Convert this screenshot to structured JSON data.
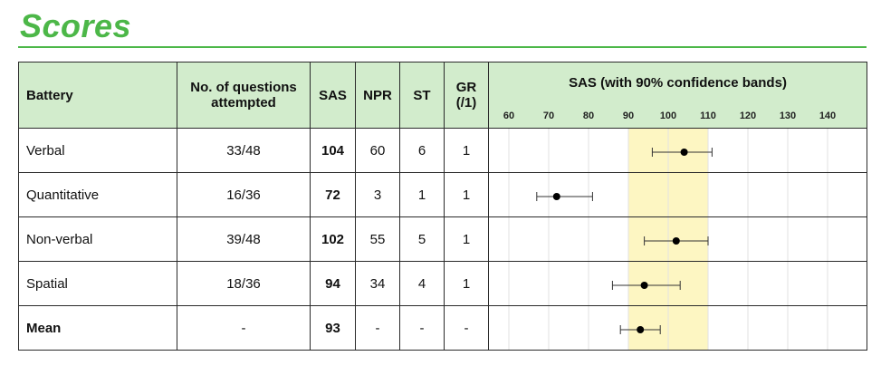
{
  "title": "Scores",
  "table": {
    "headers": {
      "battery": "Battery",
      "questions": "No. of questions attempted",
      "sas": "SAS",
      "npr": "NPR",
      "st": "ST",
      "gr": "GR (/1)",
      "chart": "SAS (with 90% confidence bands)"
    },
    "rows": [
      {
        "battery": "Verbal",
        "questions": "33/48",
        "sas": "104",
        "npr": "60",
        "st": "6",
        "gr": "1"
      },
      {
        "battery": "Quantitative",
        "questions": "16/36",
        "sas": "72",
        "npr": "3",
        "st": "1",
        "gr": "1"
      },
      {
        "battery": "Non-verbal",
        "questions": "39/48",
        "sas": "102",
        "npr": "55",
        "st": "5",
        "gr": "1"
      },
      {
        "battery": "Spatial",
        "questions": "18/36",
        "sas": "94",
        "npr": "34",
        "st": "4",
        "gr": "1"
      },
      {
        "battery": "Mean",
        "questions": "-",
        "sas": "93",
        "npr": "-",
        "st": "-",
        "gr": "-"
      }
    ]
  },
  "chart_data": {
    "type": "scatter",
    "title": "SAS (with 90% confidence bands)",
    "x_ticks": [
      60,
      70,
      80,
      90,
      100,
      110,
      120,
      130,
      140
    ],
    "xlim": [
      55,
      150
    ],
    "highlight_band": [
      90,
      110
    ],
    "highlight_color": "#fdf6c2",
    "categories": [
      "Verbal",
      "Quantitative",
      "Non-verbal",
      "Spatial",
      "Mean"
    ],
    "values": [
      104,
      72,
      102,
      94,
      93
    ],
    "ci_low": [
      96,
      67,
      94,
      86,
      88
    ],
    "ci_high": [
      111,
      81,
      110,
      103,
      98
    ],
    "grid": true
  }
}
